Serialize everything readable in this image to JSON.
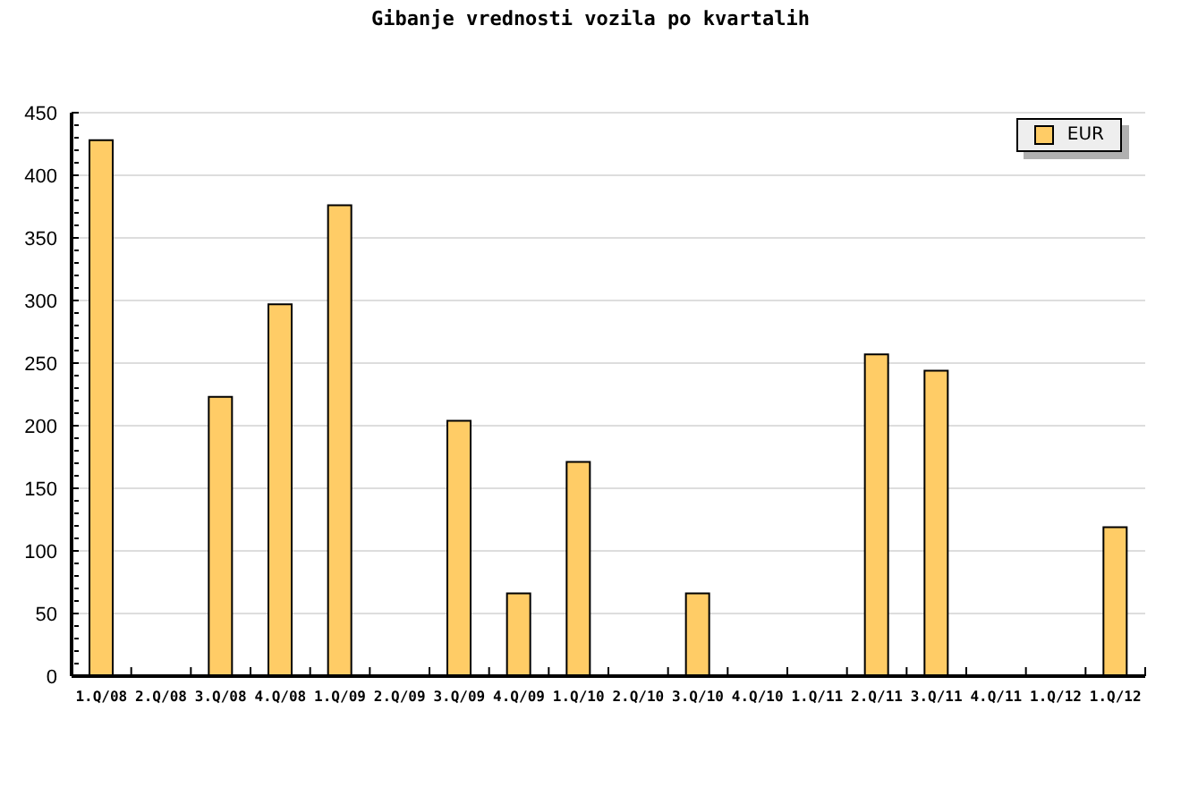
{
  "chart_data": {
    "type": "bar",
    "title": "Gibanje vrednosti vozila po kvartalih",
    "categories": [
      "1.Q/08",
      "2.Q/08",
      "3.Q/08",
      "4.Q/08",
      "1.Q/09",
      "2.Q/09",
      "3.Q/09",
      "4.Q/09",
      "1.Q/10",
      "2.Q/10",
      "3.Q/10",
      "4.Q/10",
      "1.Q/11",
      "2.Q/11",
      "3.Q/11",
      "4.Q/11",
      "1.Q/12",
      "1.Q/12"
    ],
    "series": [
      {
        "name": "EUR",
        "color": "#ffcc66",
        "values": [
          428,
          null,
          223,
          297,
          376,
          null,
          204,
          66,
          171,
          null,
          66,
          null,
          null,
          257,
          244,
          null,
          null,
          119
        ]
      }
    ],
    "ylim": [
      0,
      450
    ],
    "yticks": [
      0,
      {
        "value": 10,
        "label": null
      },
      {
        "value": 20,
        "label": null
      },
      {
        "value": 30,
        "label": null
      },
      {
        "value": 40,
        "label": null
      },
      50,
      {
        "value": 60,
        "label": null
      },
      {
        "value": 70,
        "label": null
      },
      {
        "value": 80,
        "label": null
      },
      {
        "value": 90,
        "label": null
      },
      100,
      {
        "value": 110,
        "label": null
      },
      {
        "value": 120,
        "label": null
      },
      {
        "value": 130,
        "label": null
      },
      {
        "value": 140,
        "label": null
      },
      150,
      {
        "value": 160,
        "label": null
      },
      {
        "value": 170,
        "label": null
      },
      {
        "value": 180,
        "label": null
      },
      {
        "value": 190,
        "label": null
      },
      200,
      {
        "value": 210,
        "label": null
      },
      {
        "value": 220,
        "label": null
      },
      {
        "value": 230,
        "label": null
      },
      {
        "value": 240,
        "label": null
      },
      250,
      {
        "value": 260,
        "label": null
      },
      {
        "value": 270,
        "label": null
      },
      {
        "value": 280,
        "label": null
      },
      {
        "value": 290,
        "label": null
      },
      300,
      {
        "value": 310,
        "label": null
      },
      {
        "value": 320,
        "label": null
      },
      {
        "value": 330,
        "label": null
      },
      {
        "value": 340,
        "label": null
      },
      350,
      {
        "value": 360,
        "label": null
      },
      {
        "value": 370,
        "label": null
      },
      {
        "value": 380,
        "label": null
      },
      {
        "value": 390,
        "label": null
      },
      400,
      {
        "value": 410,
        "label": null
      },
      {
        "value": 420,
        "label": null
      },
      {
        "value": 430,
        "label": null
      },
      {
        "value": 440,
        "label": null
      },
      450
    ],
    "grid": "y",
    "legend": "top right"
  }
}
